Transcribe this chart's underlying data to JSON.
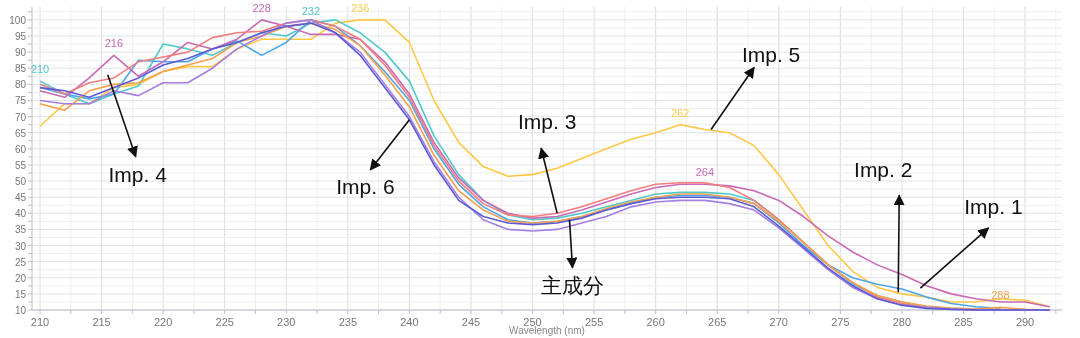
{
  "chart_data": {
    "type": "line",
    "xlabel": "Wavelength (nm)",
    "x": [
      210,
      212,
      214,
      216,
      218,
      220,
      222,
      224,
      226,
      228,
      230,
      232,
      234,
      236,
      238,
      240,
      242,
      244,
      246,
      248,
      250,
      252,
      254,
      256,
      258,
      260,
      262,
      264,
      266,
      268,
      270,
      272,
      274,
      276,
      278,
      280,
      282,
      284,
      286,
      288,
      290,
      292
    ],
    "xlim": [
      209.35,
      293
    ],
    "ylim": [
      10,
      104
    ],
    "xticks": [
      210,
      {
        "value": 212.5,
        "label": null
      },
      215,
      {
        "value": 217.5,
        "label": null
      },
      220,
      {
        "value": 222.5,
        "label": null
      },
      225,
      {
        "value": 227.5,
        "label": null
      },
      230,
      {
        "value": 232.5,
        "label": null
      },
      235,
      {
        "value": 237.5,
        "label": null
      },
      240,
      {
        "value": 242.5,
        "label": null
      },
      245,
      {
        "value": 247.5,
        "label": null
      },
      250,
      {
        "value": 252.5,
        "label": null
      },
      255,
      {
        "value": 257.5,
        "label": null
      },
      260,
      {
        "value": 262.5,
        "label": null
      },
      265,
      {
        "value": 267.5,
        "label": null
      },
      270,
      {
        "value": 272.5,
        "label": null
      },
      275,
      {
        "value": 277.5,
        "label": null
      },
      280,
      {
        "value": 282.5,
        "label": null
      },
      285,
      {
        "value": 287.5,
        "label": null
      },
      290,
      {
        "value": 292.5,
        "label": null
      }
    ],
    "yticks": [
      10,
      {
        "value": 12.5,
        "label": null
      },
      15,
      {
        "value": 17.5,
        "label": null
      },
      20,
      {
        "value": 22.5,
        "label": null
      },
      25,
      {
        "value": 27.5,
        "label": null
      },
      30,
      {
        "value": 32.5,
        "label": null
      },
      35,
      {
        "value": 37.5,
        "label": null
      },
      40,
      {
        "value": 42.5,
        "label": null
      },
      45,
      {
        "value": 47.5,
        "label": null
      },
      50,
      {
        "value": 52.5,
        "label": null
      },
      55,
      {
        "value": 57.5,
        "label": null
      },
      60,
      {
        "value": 62.5,
        "label": null
      },
      65,
      {
        "value": 67.5,
        "label": null
      },
      70,
      {
        "value": 72.5,
        "label": null
      },
      75,
      {
        "value": 77.5,
        "label": null
      },
      80,
      {
        "value": 82.5,
        "label": null
      },
      85,
      {
        "value": 87.5,
        "label": null
      },
      90,
      {
        "value": 92.5,
        "label": null
      },
      95,
      {
        "value": 97.5,
        "label": null
      },
      100,
      {
        "value": 102.5,
        "label": null
      }
    ],
    "grid": true,
    "marker": "none",
    "line_style": "solid",
    "series": [
      {
        "color": "#ffc845",
        "values": [
          67,
          74,
          74,
          79,
          80,
          84,
          85.5,
          85.5,
          91,
          94,
          94,
          94,
          99,
          100,
          100,
          93,
          75,
          62,
          54.5,
          51.5,
          52,
          54,
          57,
          60,
          63,
          65,
          67.5,
          66,
          65,
          61,
          52,
          41,
          30,
          22,
          17,
          15,
          14,
          12.5,
          12.5,
          13.5,
          13,
          11
        ]
      },
      {
        "color": "#4fc9c9",
        "values": [
          81,
          77,
          74,
          77,
          79.5,
          92.5,
          91,
          89,
          93,
          96,
          95,
          99,
          100,
          96,
          90,
          81,
          64,
          52,
          44,
          39.5,
          38,
          38.5,
          40,
          42,
          44,
          46,
          46.5,
          46.5,
          46,
          44,
          38,
          31,
          24,
          18,
          14.5,
          12.5,
          11,
          10.5,
          10.3,
          10.2,
          null,
          null
        ]
      },
      {
        "color": "#4da6e8",
        "values": [
          79,
          77,
          75.5,
          77,
          87.5,
          87,
          87,
          91,
          93.5,
          89,
          93,
          100,
          98,
          92,
          84,
          75,
          60,
          49,
          42,
          38,
          37,
          37.5,
          39,
          41,
          43,
          45,
          45.5,
          45.5,
          45,
          43,
          37,
          30,
          24,
          20,
          18,
          16.5,
          14,
          12,
          11,
          10.5,
          null,
          null
        ]
      },
      {
        "color": "#c86ab5",
        "values": [
          78,
          76,
          82,
          89,
          82.5,
          87,
          93,
          91,
          94,
          100,
          98,
          95.5,
          95.5,
          94,
          87,
          77,
          62,
          51,
          44,
          40,
          38.5,
          39,
          41,
          43.5,
          46,
          48,
          49,
          49,
          48.5,
          47,
          44,
          39,
          33,
          28,
          24,
          21,
          17.5,
          15,
          13.5,
          12.5,
          12.5,
          11
        ]
      },
      {
        "color": "#f47c7c",
        "values": [
          80,
          77,
          80.5,
          82,
          87,
          88.5,
          90,
          94.5,
          96,
          96.5,
          99,
          100,
          98,
          94,
          86,
          76,
          61,
          50,
          43,
          39.5,
          39,
          40,
          42,
          44.5,
          47,
          49,
          49.5,
          49.5,
          48,
          44,
          38,
          31,
          24,
          18.5,
          14,
          12,
          10.8,
          10.3,
          10,
          10,
          10,
          10
        ]
      },
      {
        "color": "#f5a04a",
        "values": [
          74,
          72,
          78,
          80,
          80.5,
          84,
          86,
          88,
          93,
          95,
          98,
          99,
          97,
          92,
          83,
          73,
          58,
          47,
          41,
          37.5,
          37,
          37.5,
          39,
          41.5,
          43.5,
          45,
          46,
          46,
          45,
          43,
          37.5,
          31,
          24,
          18.5,
          14.5,
          12.5,
          11.2,
          10.6,
          10.3,
          10.8,
          10.2,
          10
        ]
      },
      {
        "color": "#a57ee0",
        "values": [
          75,
          74,
          74,
          78,
          76.5,
          80.5,
          80.5,
          85,
          91,
          95,
          99,
          100,
          96,
          90,
          80,
          70,
          56,
          45,
          38,
          35,
          34.5,
          35,
          37,
          39,
          42,
          43.5,
          44,
          44,
          43,
          41,
          35.5,
          29,
          22.5,
          17,
          13.5,
          11.5,
          10.8,
          10.3,
          10.1,
          10,
          10,
          10
        ]
      },
      {
        "color": "#5b5bd6",
        "values": [
          79,
          78,
          76,
          79,
          82,
          86,
          88,
          91,
          93,
          96,
          98,
          99,
          96,
          89,
          79,
          69,
          55,
          44,
          39,
          37,
          36.5,
          37,
          38.5,
          41,
          43,
          44.5,
          45,
          45,
          44.5,
          42,
          36,
          29.5,
          23,
          17.5,
          13.5,
          11.5,
          10.5,
          10.2,
          10,
          10,
          10,
          10
        ]
      }
    ],
    "annotations": [
      {
        "text": "Imp. 4",
        "x": 215.5,
        "y": 83
      },
      {
        "text": "Imp. 6",
        "x": 240,
        "y": 69
      },
      {
        "text": "Imp. 3",
        "x": 252,
        "y": 40
      },
      {
        "text": "主成分",
        "x": 253,
        "y": 38
      },
      {
        "text": "Imp. 5",
        "x": 264.5,
        "y": 66
      },
      {
        "text": "Imp. 2",
        "x": 279.7,
        "y": 15.5
      },
      {
        "text": "Imp. 1",
        "x": 281.5,
        "y": 16.8
      },
      {
        "text": "210",
        "x": 210,
        "y": 81
      },
      {
        "text": "216",
        "x": 216,
        "y": 89
      },
      {
        "text": "228",
        "x": 228,
        "y": 100
      },
      {
        "text": "232",
        "x": 232,
        "y": 99
      },
      {
        "text": "236",
        "x": 236,
        "y": 100
      },
      {
        "text": "262",
        "x": 262,
        "y": 67.5
      },
      {
        "text": "264",
        "x": 264,
        "y": 49
      },
      {
        "text": "288",
        "x": 288,
        "y": 10.8
      }
    ]
  }
}
